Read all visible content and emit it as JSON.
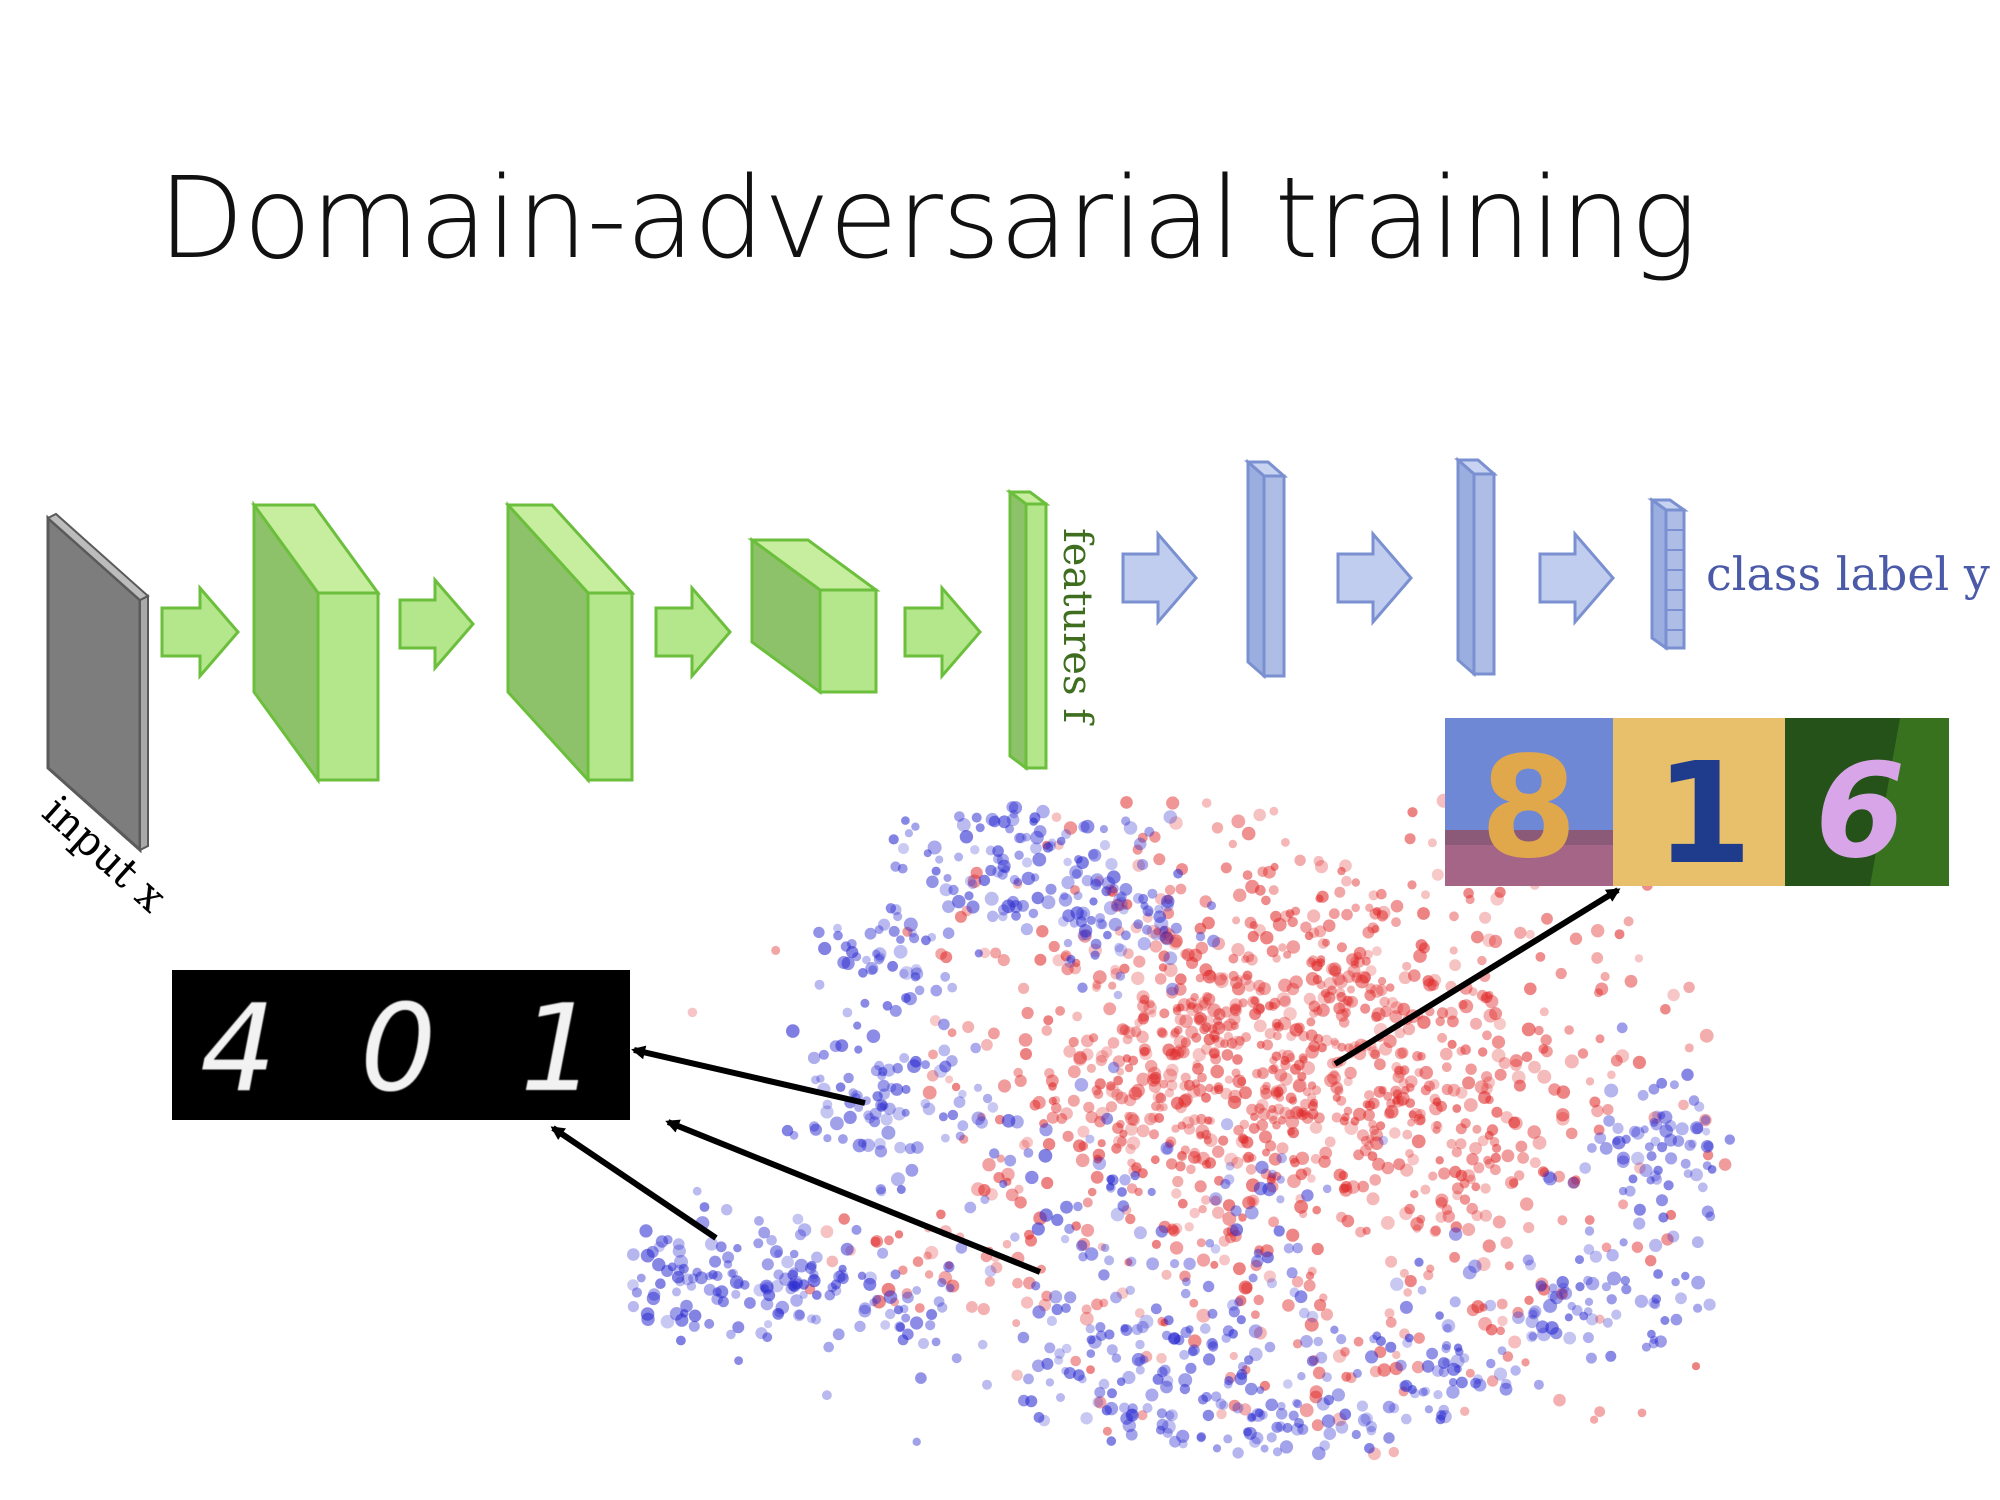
{
  "slide": {
    "title": "Domain-adversarial training"
  },
  "network": {
    "input_label": "input x",
    "features_label": "features f",
    "output_label": "class label y"
  },
  "source_digits": [
    "4",
    "0",
    "1"
  ],
  "target_digits": [
    "8",
    "1",
    "6"
  ],
  "colors": {
    "source_domain": "#2a2ad0",
    "target_domain": "#e02828",
    "feature_extractor": "#b4e68c",
    "feature_extractor_dark": "#8ec26a",
    "feature_extractor_edge": "#6cbf3c",
    "label_predictor": "#aebde6",
    "label_predictor_edge": "#7a90d0",
    "input_layer": "#808080",
    "label_text": "#4a5aa8",
    "features_text": "#3e6e1e"
  },
  "icons": {
    "arrow": "right-arrow-icon",
    "pointer": "pointer-arrow-icon"
  }
}
